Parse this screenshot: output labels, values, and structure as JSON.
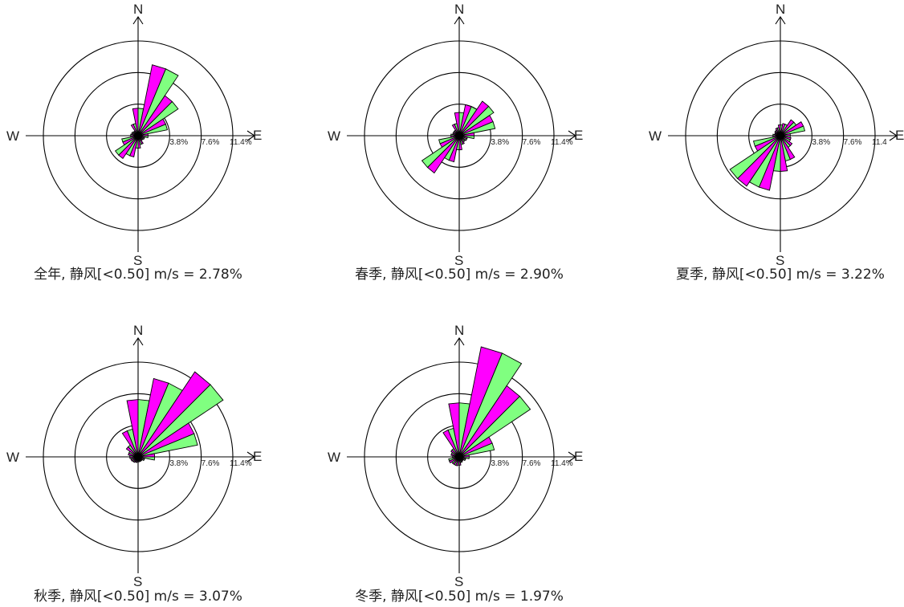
{
  "colors": {
    "sector_a": "#ff00ff",
    "sector_b": "#80ff80",
    "outline": "#000000",
    "axis": "#000000"
  },
  "chart_data": [
    {
      "type": "wind-rose",
      "caption": "全年, 静风[<0.50] m/s = 2.78%",
      "directions": [
        "N",
        "NNE",
        "NE",
        "ENE",
        "E",
        "ESE",
        "SE",
        "SSE",
        "S",
        "SSW",
        "SW",
        "WSW",
        "W",
        "WNW",
        "NW",
        "NNW"
      ],
      "compass_labels": [
        "N",
        "E",
        "S",
        "W"
      ],
      "rings": [
        "3.8%",
        "7.6%",
        "11.4%"
      ],
      "ring_values": [
        3.8,
        7.6,
        11.4
      ],
      "values": [
        3.3,
        8.7,
        5.8,
        3.6,
        1.2,
        0.8,
        0.7,
        1.1,
        1.5,
        2.6,
        3.3,
        2.0,
        0.9,
        0.8,
        0.7,
        1.5
      ]
    },
    {
      "type": "wind-rose",
      "caption": "春季, 静风[<0.50] m/s = 2.90%",
      "directions": [
        "N",
        "NNE",
        "NE",
        "ENE",
        "E",
        "ESE",
        "SE",
        "SSE",
        "S",
        "SSW",
        "SW",
        "WSW",
        "W",
        "WNW",
        "NW",
        "NNW"
      ],
      "compass_labels": [
        "N",
        "E",
        "S",
        "W"
      ],
      "rings": [
        "3.8%",
        "7.6%",
        "11.4%"
      ],
      "ring_values": [
        3.8,
        7.6,
        11.4
      ],
      "values": [
        2.8,
        3.8,
        5.0,
        4.4,
        1.8,
        1.0,
        0.9,
        1.1,
        1.7,
        3.2,
        5.4,
        2.5,
        1.0,
        0.8,
        0.8,
        1.5
      ]
    },
    {
      "type": "wind-rose",
      "caption": "夏季, 静风[<0.50] m/s = 3.22%",
      "directions": [
        "N",
        "NNE",
        "NE",
        "ENE",
        "E",
        "ESE",
        "SE",
        "SSE",
        "S",
        "SSW",
        "SW",
        "WSW",
        "W",
        "WNW",
        "NW",
        "NNW"
      ],
      "compass_labels": [
        "N",
        "E"
      ],
      "rings": [
        "3.8%",
        "7.6%",
        "11.4"
      ],
      "ring_values": [
        3.8,
        7.6,
        11.4
      ],
      "values": [
        1.3,
        1.5,
        2.3,
        3.0,
        1.2,
        1.3,
        1.7,
        3.1,
        4.3,
        6.7,
        7.3,
        3.3,
        0.9,
        0.7,
        0.8,
        1.0
      ]
    },
    {
      "type": "wind-rose",
      "caption": "秋季, 静风[<0.50] m/s = 3.07%",
      "directions": [
        "N",
        "NNE",
        "NE",
        "ENE",
        "E",
        "ESE",
        "SE",
        "SSE",
        "S",
        "SSW",
        "SW",
        "WSW",
        "W",
        "WNW",
        "NW",
        "NNW"
      ],
      "compass_labels": [
        "N",
        "E",
        "S",
        "W"
      ],
      "rings": [
        "3.8%",
        "7.6%",
        "11.4%"
      ],
      "ring_values": [
        3.8,
        7.6,
        11.4
      ],
      "values": [
        6.9,
        9.6,
        12.3,
        7.3,
        2.0,
        0.8,
        0.6,
        0.6,
        0.6,
        0.7,
        0.8,
        0.9,
        1.0,
        1.2,
        1.7,
        3.4
      ]
    },
    {
      "type": "wind-rose",
      "caption": "冬季, 静风[<0.50] m/s = 1.97%",
      "directions": [
        "N",
        "NNE",
        "NE",
        "ENE",
        "E",
        "ESE",
        "SE",
        "SSE",
        "S",
        "SSW",
        "SW",
        "WSW",
        "W",
        "WNW",
        "NW",
        "NNW"
      ],
      "compass_labels": [
        "N",
        "E",
        "S",
        "W"
      ],
      "rings": [
        "3.8%",
        "7.6%",
        "11.4%"
      ],
      "ring_values": [
        3.8,
        7.6,
        11.4
      ],
      "values": [
        6.5,
        13.5,
        10.3,
        4.3,
        1.2,
        0.8,
        0.6,
        0.7,
        1.0,
        1.1,
        1.1,
        1.3,
        0.8,
        1.0,
        1.2,
        3.5
      ]
    }
  ]
}
